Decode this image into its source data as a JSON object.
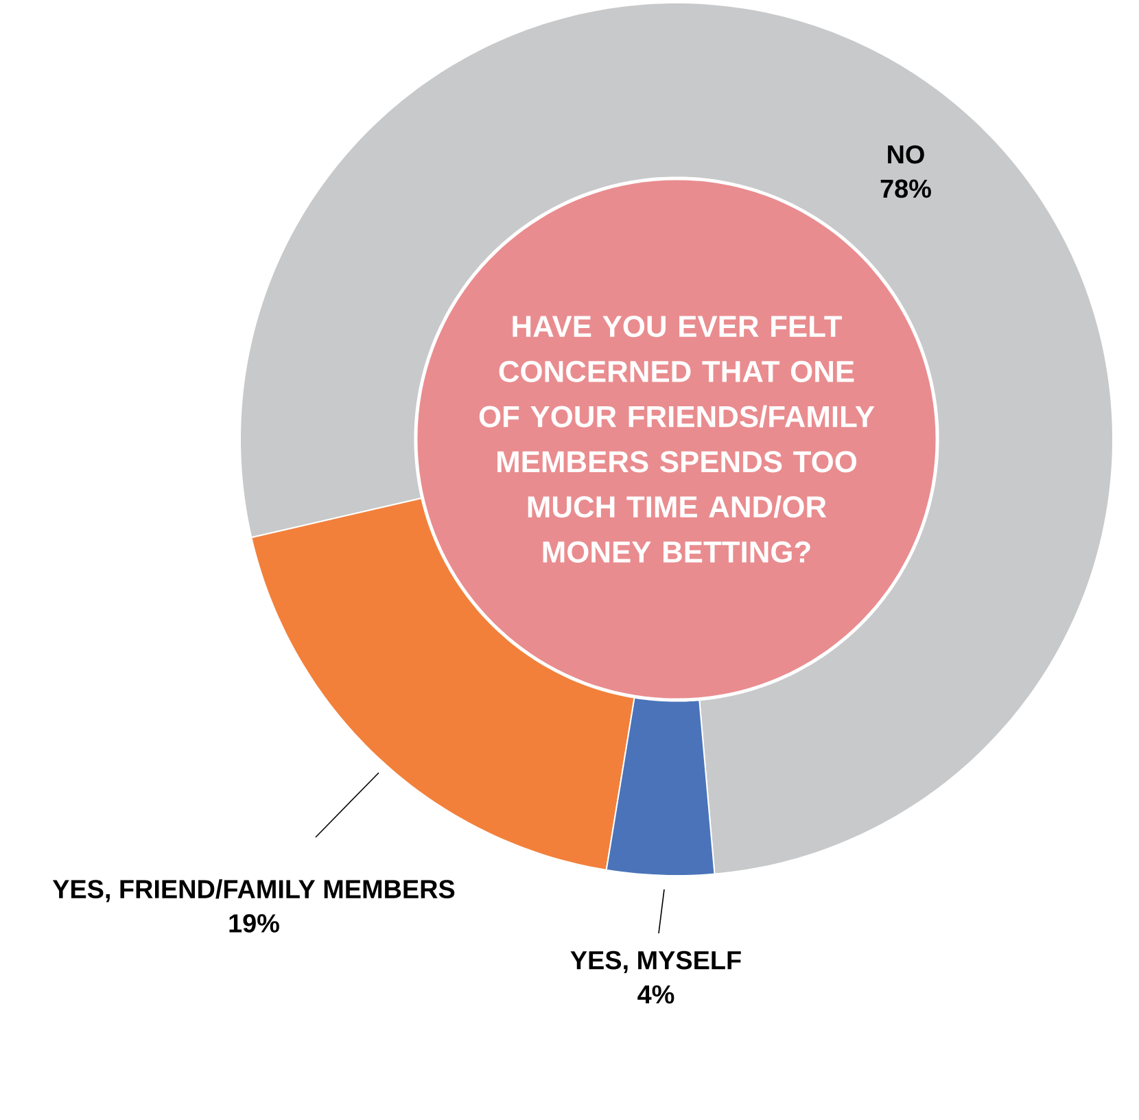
{
  "chart_data": {
    "type": "donut",
    "title": "HAVE YOU EVER FELT CONCERNED THAT ONE OF YOUR FRIENDS/FAMILY MEMBERS SPENDS TOO MUCH TIME AND/OR MONEY BETTING?",
    "categories": [
      "NO",
      "YES, FRIEND/FAMILY MEMBERS",
      "YES, MYSELF"
    ],
    "values": [
      78,
      19,
      4
    ],
    "value_labels": [
      "78%",
      "19%",
      "4%"
    ],
    "colors": [
      "#c8c9ca",
      "#f2803b",
      "#4a73b9"
    ]
  }
}
